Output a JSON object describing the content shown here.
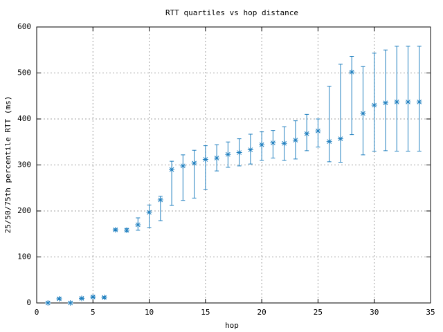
{
  "chart_data": {
    "type": "errorbar",
    "title": "RTT quartiles vs hop distance",
    "x_label": "hop",
    "y_label": "25/50/75th percentile RTT (ms)",
    "xlim": [
      0,
      35
    ],
    "xticks": [
      0,
      5,
      10,
      15,
      20,
      25,
      30,
      35
    ],
    "ylim": [
      0,
      600
    ],
    "yticks": [
      0,
      100,
      200,
      300,
      400,
      500,
      600
    ],
    "grid": true,
    "series": [
      {
        "color": "#1f7fbf",
        "x": [
          1,
          2,
          3,
          4,
          5,
          6,
          7,
          8,
          9,
          10,
          11,
          12,
          13,
          14,
          15,
          16,
          17,
          18,
          19,
          20,
          21,
          22,
          23,
          24,
          25,
          26,
          27,
          28,
          29,
          30,
          31,
          32,
          33,
          34
        ],
        "values": [
          0,
          9,
          0,
          10,
          13,
          12,
          159,
          158,
          170,
          197,
          224,
          290,
          298,
          304,
          312,
          315,
          323,
          327,
          333,
          344,
          348,
          347,
          354,
          368,
          374,
          351,
          357,
          502,
          412,
          430,
          435,
          437,
          437,
          437
        ],
        "low": [
          0,
          7,
          0,
          8,
          11,
          10,
          157,
          155,
          158,
          164,
          179,
          212,
          223,
          228,
          247,
          287,
          295,
          298,
          302,
          310,
          315,
          310,
          313,
          331,
          339,
          307,
          306,
          366,
          322,
          330,
          331,
          330,
          330,
          330
        ],
        "high": [
          2,
          11,
          2,
          12,
          15,
          14,
          161,
          162,
          185,
          213,
          232,
          308,
          322,
          332,
          342,
          344,
          350,
          357,
          367,
          372,
          375,
          383,
          396,
          410,
          400,
          471,
          519,
          536,
          514,
          543,
          550,
          558,
          558,
          558
        ]
      }
    ]
  }
}
